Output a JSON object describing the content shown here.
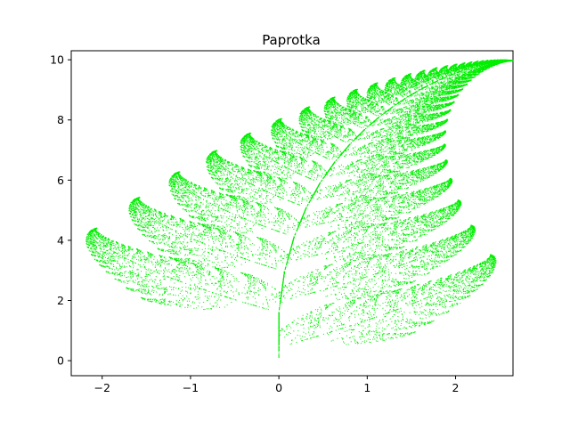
{
  "chart_data": {
    "type": "scatter",
    "title": "Paprotka",
    "xlabel": "",
    "ylabel": "",
    "xlim": [
      -2.35,
      2.65
    ],
    "ylim": [
      -0.5,
      10.3
    ],
    "xticks": [
      -2,
      -1,
      0,
      1,
      2
    ],
    "yticks": [
      0,
      2,
      4,
      6,
      8,
      10
    ],
    "grid": false,
    "legend": "none",
    "series": [
      {
        "marker_color": "#00ee00",
        "generator": "barnsley-fern",
        "point_count": 30000,
        "transforms": [
          {
            "a": 0.0,
            "b": 0.0,
            "c": 0.0,
            "d": 0.16,
            "e": 0.0,
            "f": 0.0,
            "p": 0.01
          },
          {
            "a": 0.85,
            "b": 0.04,
            "c": -0.04,
            "d": 0.85,
            "e": 0.0,
            "f": 1.6,
            "p": 0.85
          },
          {
            "a": 0.2,
            "b": -0.26,
            "c": 0.23,
            "d": 0.22,
            "e": 0.0,
            "f": 1.6,
            "p": 0.07
          },
          {
            "a": -0.15,
            "b": 0.28,
            "c": 0.26,
            "d": 0.24,
            "e": 0.0,
            "f": 0.44,
            "p": 0.07
          }
        ]
      }
    ]
  }
}
